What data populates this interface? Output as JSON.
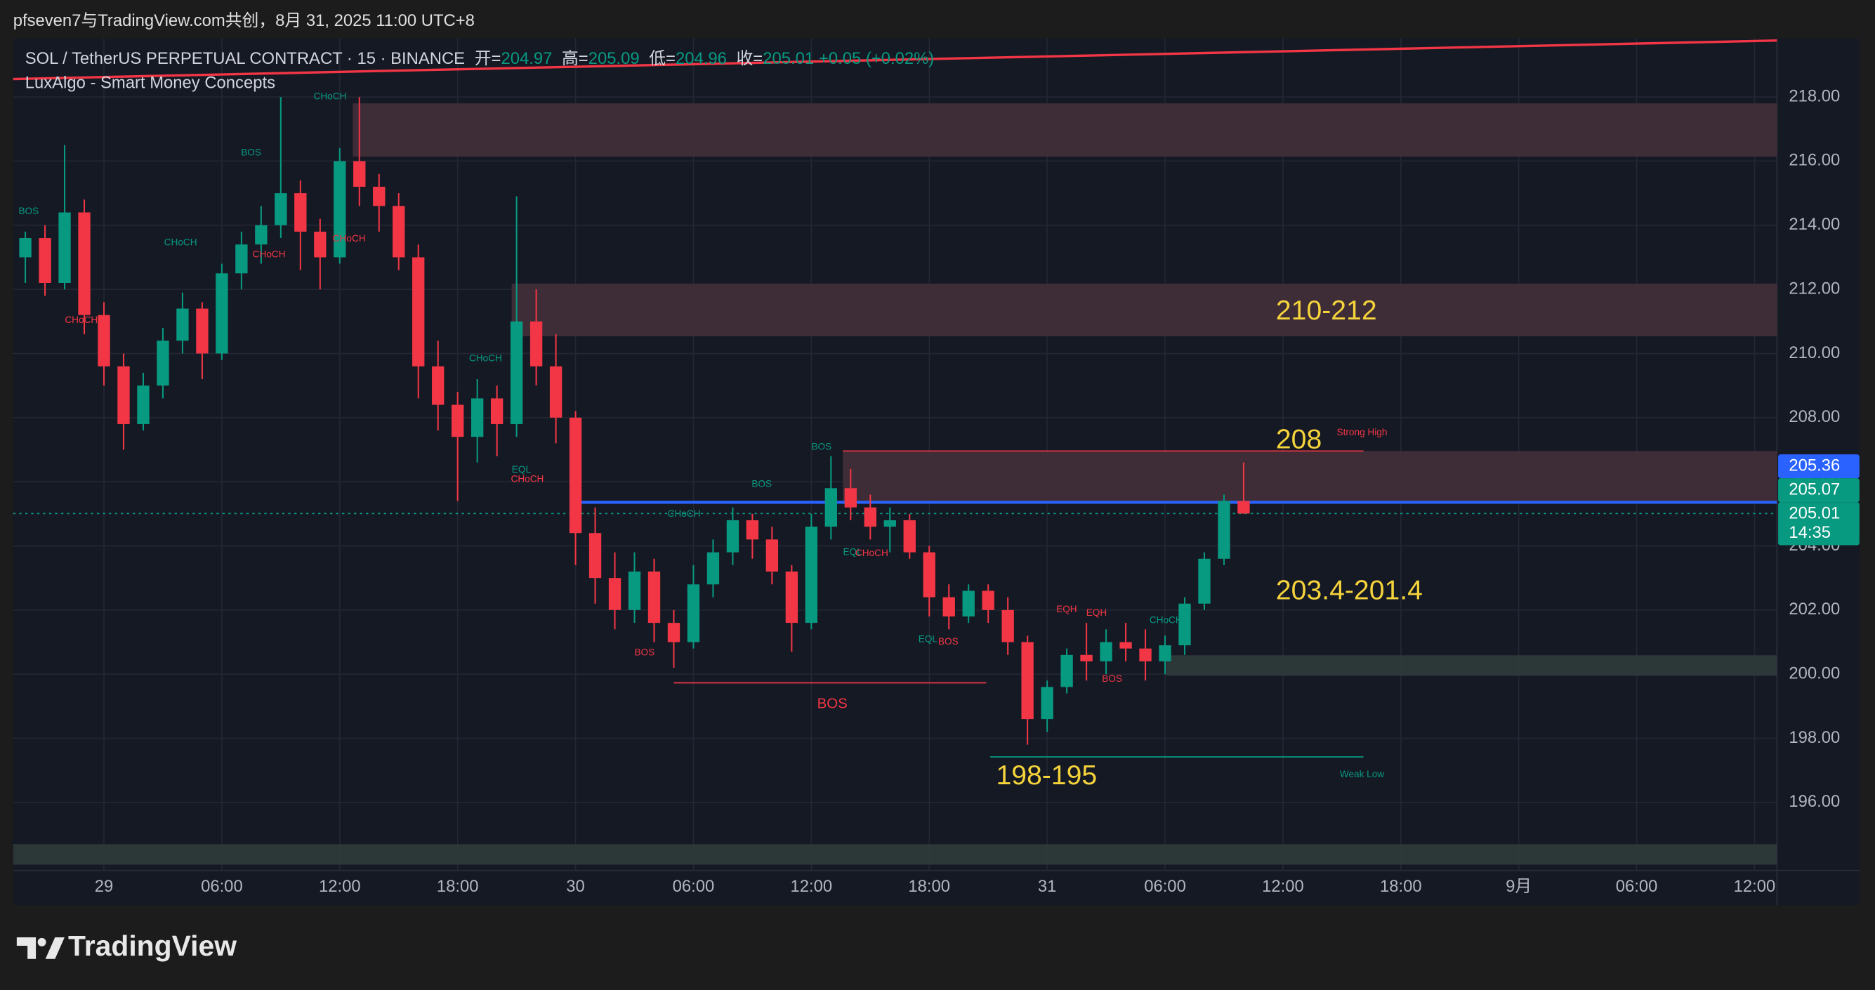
{
  "header": "pfseven7与TradingView.com共创，8月 31, 2025 11:00 UTC+8",
  "chart_data": {
    "type": "candlestick",
    "symbol": "SOL / TetherUS PERPETUAL CONTRACT · 15 · BINANCE",
    "ohlc_legend": [
      {
        "label": "开=",
        "value": "204.97"
      },
      {
        "label": "高=",
        "value": "205.09"
      },
      {
        "label": "低=",
        "value": "204.96"
      },
      {
        "label": "收=",
        "value": "205.01"
      }
    ],
    "change": "+0.05 (+0.02%)",
    "indicator": "LuxAlgo - Smart Money Concepts",
    "up_color": "#089981",
    "down_color": "#f23645",
    "x": [
      -4,
      -3,
      -2,
      -1,
      0,
      1,
      2,
      3,
      4,
      5,
      6,
      7,
      8,
      9,
      10,
      11,
      12,
      13,
      14,
      15,
      16,
      17,
      18,
      19,
      20,
      21,
      22,
      23,
      24,
      25,
      26,
      27,
      28,
      29,
      30,
      31,
      32,
      33,
      34,
      35,
      36,
      37,
      38,
      39,
      40,
      41,
      42,
      43,
      44,
      45,
      46,
      47,
      48,
      49,
      50,
      51,
      52,
      53,
      54,
      55,
      56,
      57,
      58
    ],
    "open": [
      213.0,
      213.6,
      212.2,
      214.4,
      211.2,
      209.6,
      207.8,
      209.0,
      210.4,
      211.4,
      210.0,
      212.5,
      213.4,
      214.0,
      215.0,
      213.8,
      213.0,
      216.0,
      215.2,
      214.6,
      213.0,
      209.6,
      208.4,
      207.4,
      208.6,
      207.8,
      211.0,
      209.6,
      208.0,
      204.4,
      203.0,
      202.0,
      203.2,
      201.6,
      201.0,
      202.8,
      203.8,
      204.8,
      204.2,
      203.2,
      201.6,
      204.6,
      205.8,
      205.2,
      204.6,
      204.8,
      203.8,
      202.4,
      201.8,
      202.6,
      202.0,
      201.0,
      198.6,
      199.6,
      200.6,
      200.4,
      201.0,
      200.8,
      200.4,
      200.9,
      202.2,
      203.6,
      205.4
    ],
    "high": [
      213.8,
      214.0,
      216.5,
      214.8,
      211.6,
      210.0,
      209.4,
      210.8,
      211.9,
      211.6,
      212.8,
      213.8,
      214.6,
      218.0,
      215.4,
      214.2,
      216.4,
      218.0,
      215.6,
      215.0,
      213.4,
      210.4,
      208.8,
      209.2,
      209.0,
      214.9,
      212.0,
      210.6,
      208.2,
      205.2,
      203.8,
      203.8,
      203.6,
      202.0,
      203.4,
      204.2,
      205.2,
      205.0,
      204.6,
      203.4,
      205.0,
      206.8,
      206.4,
      205.6,
      205.2,
      205.0,
      204.0,
      202.8,
      202.8,
      202.8,
      202.4,
      201.2,
      199.8,
      200.8,
      201.6,
      201.4,
      201.6,
      201.4,
      201.2,
      202.4,
      203.8,
      205.6,
      206.6
    ],
    "low": [
      212.2,
      211.8,
      212.0,
      210.6,
      209.0,
      207.0,
      207.6,
      208.6,
      210.0,
      209.2,
      209.8,
      212.0,
      212.8,
      213.6,
      212.6,
      212.0,
      212.8,
      214.6,
      213.8,
      212.6,
      208.6,
      207.6,
      205.4,
      206.6,
      206.8,
      207.4,
      209.0,
      207.2,
      203.4,
      202.2,
      201.4,
      201.6,
      201.0,
      200.2,
      200.8,
      202.4,
      203.4,
      203.6,
      202.8,
      200.7,
      201.4,
      204.2,
      204.8,
      204.2,
      203.8,
      203.6,
      201.8,
      201.4,
      201.6,
      201.6,
      200.6,
      197.8,
      198.2,
      199.4,
      199.8,
      200.0,
      200.4,
      199.8,
      200.0,
      200.6,
      202.0,
      203.4,
      205.0
    ],
    "close": [
      213.6,
      212.2,
      214.4,
      211.2,
      209.6,
      207.8,
      209.0,
      210.4,
      211.4,
      210.0,
      212.5,
      213.4,
      214.0,
      215.0,
      213.8,
      213.0,
      216.0,
      215.2,
      214.6,
      213.0,
      209.6,
      208.4,
      207.4,
      208.6,
      207.8,
      211.0,
      209.6,
      208.0,
      204.4,
      203.0,
      202.0,
      203.2,
      201.6,
      201.0,
      202.8,
      203.8,
      204.8,
      204.2,
      203.2,
      201.6,
      204.6,
      205.8,
      205.2,
      204.6,
      204.8,
      203.8,
      202.4,
      201.8,
      202.6,
      202.0,
      201.0,
      198.6,
      199.6,
      200.6,
      200.4,
      201.0,
      200.8,
      200.4,
      200.9,
      202.2,
      203.6,
      205.4,
      205.01
    ],
    "xlim": [
      -4.62,
      85.14
    ],
    "xticks": [
      {
        "value": 0,
        "label": "29"
      },
      {
        "value": 6,
        "label": "06:00"
      },
      {
        "value": 12,
        "label": "12:00"
      },
      {
        "value": 18,
        "label": "18:00"
      },
      {
        "value": 24,
        "label": "30"
      },
      {
        "value": 30,
        "label": "06:00"
      },
      {
        "value": 36,
        "label": "12:00"
      },
      {
        "value": 42,
        "label": "18:00"
      },
      {
        "value": 48,
        "label": "31"
      },
      {
        "value": 54,
        "label": "06:00"
      },
      {
        "value": 60,
        "label": "12:00"
      },
      {
        "value": 66,
        "label": "18:00"
      },
      {
        "value": 72,
        "label": "9月"
      },
      {
        "value": 78,
        "label": "06:00"
      },
      {
        "value": 84,
        "label": "12:00"
      }
    ],
    "ylim": [
      193.88,
      219.83
    ],
    "yticks": [
      {
        "value": 196,
        "label": "196.00"
      },
      {
        "value": 198,
        "label": "198.00"
      },
      {
        "value": 200,
        "label": "200.00"
      },
      {
        "value": 202,
        "label": "202.00"
      },
      {
        "value": 204,
        "label": "204.00"
      },
      {
        "value": 206,
        "label": "206.00"
      },
      {
        "value": 208,
        "label": "208.00"
      },
      {
        "value": 210,
        "label": "210.00"
      },
      {
        "value": 212,
        "label": "212.00"
      },
      {
        "value": 214,
        "label": "214.00"
      },
      {
        "value": 216,
        "label": "216.00"
      },
      {
        "value": 218,
        "label": "218.00"
      }
    ],
    "grid": true,
    "zones": [
      {
        "from": 12.66,
        "low": 216.14,
        "high": 217.8,
        "color": "#432f39"
      },
      {
        "from": 20.75,
        "low": 210.54,
        "high": 212.18,
        "color": "#432f39"
      },
      {
        "from": 37.6,
        "low": 205.36,
        "high": 206.96,
        "color": "#432f39"
      },
      {
        "from": 54.05,
        "low": 199.95,
        "high": 200.59,
        "color": "#2f3b3b"
      },
      {
        "from": -4.62,
        "low": 194.06,
        "high": 194.7,
        "color": "#2f3b3b"
      }
    ],
    "trendline": {
      "x": [
        -4.62,
        85.14
      ],
      "y": [
        218.56,
        219.76
      ],
      "color": "#f23645"
    },
    "levels": [
      {
        "value": 205.36,
        "from": 24,
        "color": "#2962ff",
        "width": 2.5
      },
      {
        "value": 205.01,
        "from": -4.62,
        "color": "#089981",
        "width": 1,
        "dash": true
      },
      {
        "value": 206.96,
        "from": 37.6,
        "to": 64.1,
        "color": "#f23645",
        "width": 1
      },
      {
        "value": 199.73,
        "from": 29,
        "to": 44.9,
        "color": "#f23645",
        "width": 1
      },
      {
        "value": 197.42,
        "from": 45.1,
        "to": 64.1,
        "color": "#089981",
        "width": 1
      }
    ],
    "annotations": [
      "210-212",
      "208",
      "203.4-201.4",
      "198-195"
    ],
    "annotation_color": "#f5d33b",
    "smc_labels": [
      {
        "text": "BOS",
        "color": "#089981"
      },
      {
        "text": "CHoCH",
        "color": "#f23645"
      },
      {
        "text": "CHoCH",
        "color": "#089981"
      },
      {
        "text": "BOS",
        "color": "#089981"
      },
      {
        "text": "CHoCH",
        "color": "#f23645"
      },
      {
        "text": "CHoCH",
        "color": "#089981"
      },
      {
        "text": "CHoCH",
        "color": "#f23645"
      },
      {
        "text": "CHoCH",
        "color": "#089981"
      },
      {
        "text": "EQL",
        "color": "#089981"
      },
      {
        "text": "CHoCH",
        "color": "#f23645"
      },
      {
        "text": "BOS",
        "color": "#089981"
      },
      {
        "text": "BOS",
        "color": "#089981"
      },
      {
        "text": "CHoCH",
        "color": "#089981"
      },
      {
        "text": "BOS",
        "color": "#f23645"
      },
      {
        "text": "EQL",
        "color": "#089981"
      },
      {
        "text": "CHoCH",
        "color": "#f23645"
      },
      {
        "text": "EQL",
        "color": "#089981"
      },
      {
        "text": "BOS",
        "color": "#f23645"
      },
      {
        "text": "EQH",
        "color": "#f23645"
      },
      {
        "text": "EQH",
        "color": "#f23645"
      },
      {
        "text": "BOS",
        "color": "#f23645"
      },
      {
        "text": "CHoCH",
        "color": "#089981"
      },
      {
        "text": "Strong High",
        "color": "#f23645"
      },
      {
        "text": "Weak Low",
        "color": "#089981"
      },
      {
        "text": "BOS",
        "color": "#f23645"
      }
    ],
    "price_badges": [
      {
        "label": "205.36",
        "color": "#2962ff"
      },
      {
        "label": "205.07",
        "color": "#089981"
      },
      {
        "label": "205.01",
        "color": "#089981"
      }
    ],
    "countdown": "14:35"
  },
  "footer": "TradingView"
}
